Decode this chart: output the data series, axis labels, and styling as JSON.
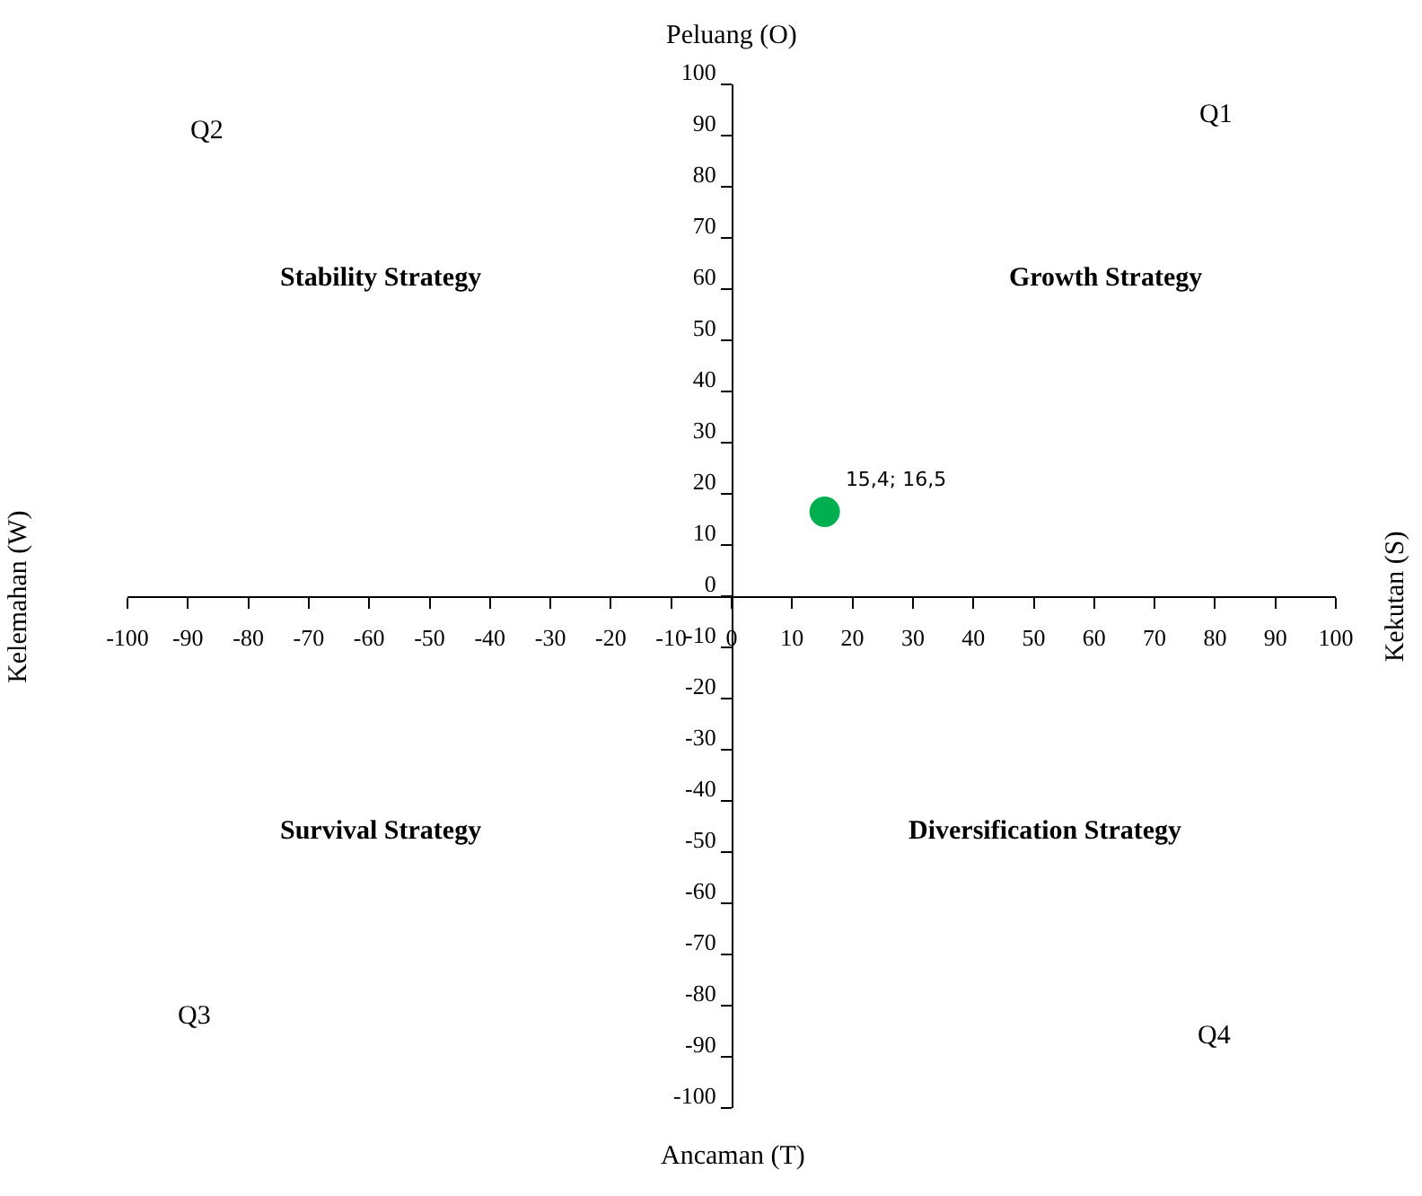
{
  "chart_data": {
    "type": "scatter",
    "x": [
      15.4
    ],
    "series": [
      {
        "color": "#00b050",
        "values": [
          16.5
        ],
        "value_labels": [
          "15,4; 16,5"
        ]
      }
    ],
    "xlim": [
      -100,
      100
    ],
    "xticks": [
      -100,
      -90,
      -80,
      -70,
      -60,
      -50,
      -40,
      -30,
      -20,
      -10,
      0,
      10,
      20,
      30,
      40,
      50,
      60,
      70,
      80,
      90,
      100
    ],
    "ylim": [
      -100,
      100
    ],
    "yticks": [
      -100,
      -90,
      -80,
      -70,
      -60,
      -50,
      -40,
      -30,
      -20,
      -10,
      0,
      10,
      20,
      30,
      40,
      50,
      60,
      70,
      80,
      90,
      100
    ],
    "marker": "circle",
    "annotations": [
      "Peluang (O)",
      "Ancaman (T)",
      "Kelemahan (W)",
      "Kekutan (S)",
      "Q1",
      "Q2",
      "Q3",
      "Q4",
      "Growth Strategy",
      "Stability Strategy",
      "Survival Strategy",
      "Diversification Strategy"
    ]
  }
}
